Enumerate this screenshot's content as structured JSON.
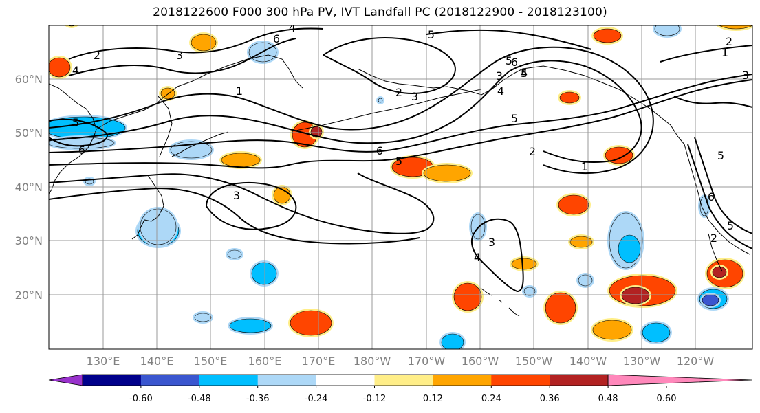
{
  "title": "2018122600 F000 300 hPa PV, IVT Landfall PC (2018122900 - 2018123100)",
  "lat_labels": [
    "60°N",
    "50°N",
    "40°N",
    "30°N",
    "20°N"
  ],
  "lon_labels": [
    "130°E",
    "140°E",
    "150°E",
    "160°E",
    "170°E",
    "180°W",
    "170°W",
    "160°W",
    "150°W",
    "140°W",
    "130°W",
    "120°W"
  ],
  "colorbar": {
    "colors": [
      "#9932CC",
      "#00008B",
      "#3A56CF",
      "#00BFFF",
      "#ADD8F7",
      "#FFFFFF",
      "#FFEE88",
      "#FFA500",
      "#FF4500",
      "#B22222",
      "#FF88BB"
    ],
    "ticks": [
      "-0.60",
      "-0.48",
      "-0.36",
      "-0.24",
      "-0.12",
      "0.12",
      "0.24",
      "0.36",
      "0.48",
      "0.60"
    ]
  },
  "contour_labels": [
    "2",
    "4",
    "3",
    "6",
    "5",
    "1",
    "4",
    "6",
    "5",
    "2",
    "3",
    "5",
    "6",
    "4",
    "5",
    "2",
    "1",
    "6",
    "5",
    "2",
    "3",
    "1",
    "2",
    "3",
    "4",
    "5",
    "6",
    "5",
    "4",
    "3",
    "3",
    "5"
  ],
  "colors": {
    "grid": "#999999",
    "contour": "#000000",
    "coast": "#000000"
  }
}
